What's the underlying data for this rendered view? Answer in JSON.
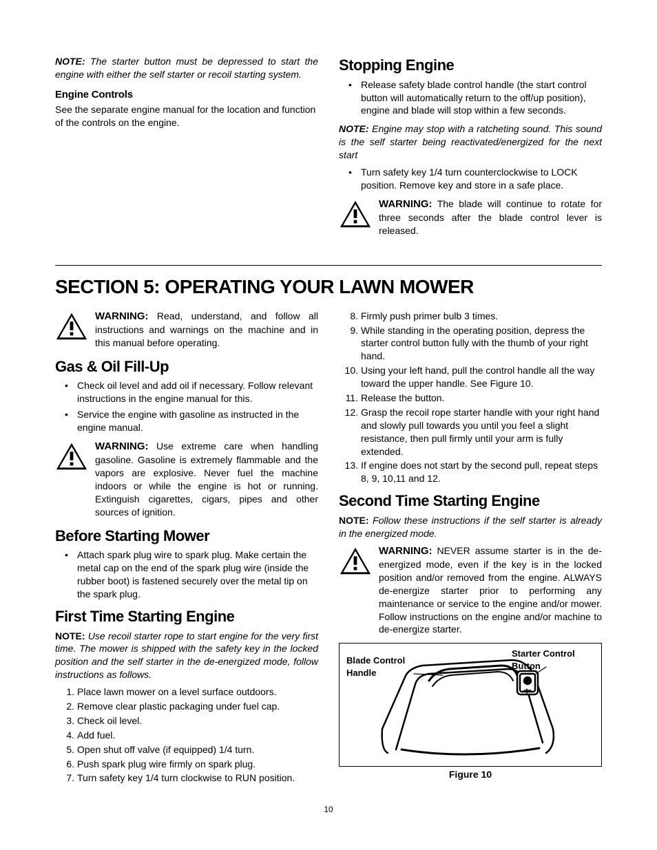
{
  "top": {
    "note_label": "NOTE:",
    "note_text": "The starter button must be depressed to start the engine with either the self starter or recoil starting system.",
    "engine_controls_heading": "Engine Controls",
    "engine_controls_text": "See the separate engine manual for the location and function of the controls on the engine.",
    "stopping_heading": "Stopping Engine",
    "stopping_bullet1": "Release safety blade control handle (the start control button will automatically return to the off/up position), engine and blade will stop within a few seconds.",
    "stopping_note_label": "NOTE:",
    "stopping_note_text": "Engine may stop with a ratcheting sound. This sound is the self starter being reactivated/energized for the next start",
    "stopping_bullet2": "Turn safety key 1/4 turn counterclockwise to LOCK position. Remove key and store in a safe place.",
    "warning_label": "WARNING:",
    "warning_blade_text": "The blade will continue to rotate for three seconds after the blade control lever is released."
  },
  "section": {
    "title": "SECTION 5: OPERATING YOUR LAWN MOWER",
    "warning_read_text": "Read, understand, and follow all instructions and warnings on the machine and in this manual before operating.",
    "gas_oil_heading": "Gas & Oil Fill-Up",
    "gas_oil_b1": "Check oil level and add oil if necessary. Follow relevant instructions in the engine manual for this.",
    "gas_oil_b2": "Service the engine with gasoline as instructed in the engine manual.",
    "warning_gasoline_text": "Use extreme care when handling gasoline. Gasoline is extremely flammable and the vapors are explosive. Never fuel the machine indoors or while the engine is hot or running. Extinguish cigarettes, cigars, pipes and other sources of ignition.",
    "before_heading": "Before Starting Mower",
    "before_b1": "Attach spark plug wire to spark plug. Make certain the metal cap on the end of the spark plug wire (inside the rubber boot) is fastened securely over the metal tip on the spark plug.",
    "first_heading": "First Time Starting Engine",
    "first_note_label": "NOTE:",
    "first_note_text": "Use recoil starter rope to start engine for the very first time. The mower is shipped with the safety key in the locked position and the self starter in the de-energized mode, follow instructions as follows.",
    "first_steps": [
      "Place lawn mower on a level surface outdoors.",
      "Remove clear plastic packaging under fuel cap.",
      "Check oil level.",
      "Add fuel.",
      "Open shut off valve (if equipped) 1/4 turn.",
      "Push spark plug wire firmly on spark plug.",
      "Turn safety key 1/4 turn clockwise to RUN position."
    ],
    "first_steps_cont": [
      "Firmly push primer bulb 3 times.",
      "While standing in the operating position, depress the starter control button fully with the thumb of your right hand.",
      "Using your left hand, pull the control handle all the way toward the upper handle. See Figure 10.",
      "Release the button.",
      "Grasp the recoil rope starter handle with your right hand and slowly pull towards you until you feel a slight resistance, then pull firmly until your arm is fully extended.",
      "If engine does not start by the second pull, repeat steps 8, 9, 10,11 and 12."
    ],
    "second_heading": "Second Time Starting Engine",
    "second_note_label": "NOTE:",
    "second_note_text": "Follow these instructions if the self starter is already in the energized mode.",
    "warning_never_text": "NEVER assume starter is in the de-energized mode, even if the key is in the locked position and/or removed from the engine. ALWAYS de-energize starter prior to performing any maintenance or service to the engine and/or mower. Follow instructions on the engine and/or machine to de-energize starter.",
    "fig_label_left": "Blade Control Handle",
    "fig_label_right": "Starter Control Button",
    "fig_caption": "Figure 10"
  },
  "page_number": "10"
}
